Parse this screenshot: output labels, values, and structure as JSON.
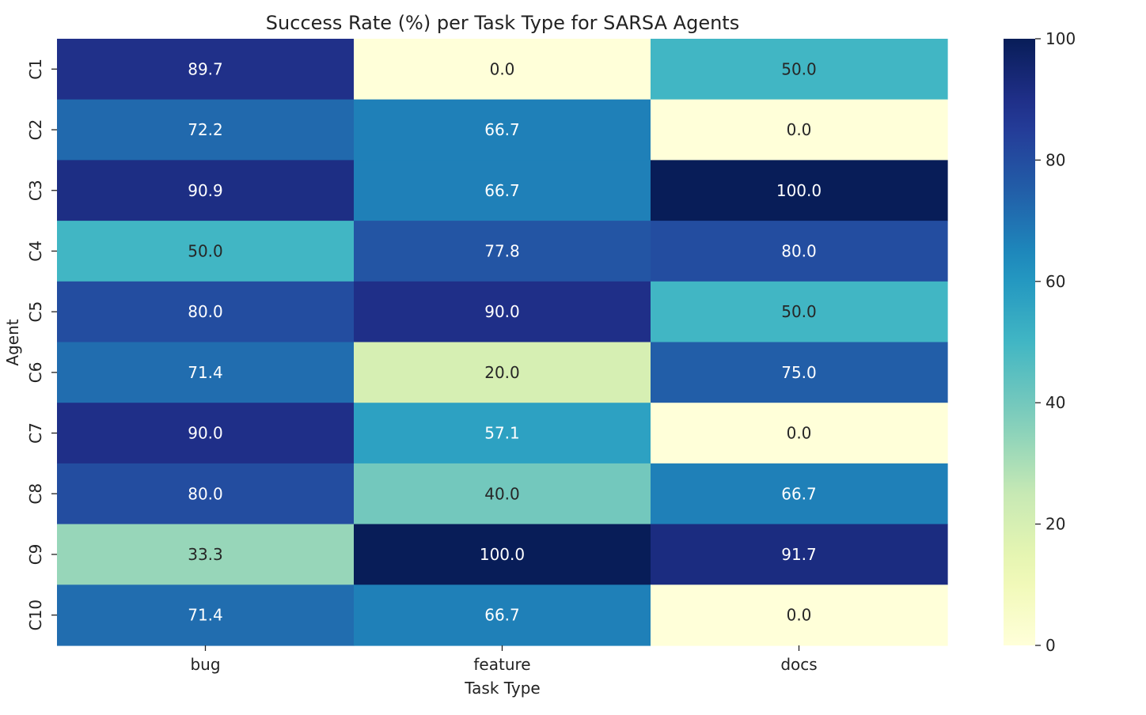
{
  "chart_data": {
    "type": "heatmap",
    "title": "Success Rate (%) per Task Type for SARSA Agents",
    "xlabel": "Task Type",
    "ylabel": "Agent",
    "x": [
      "bug",
      "feature",
      "docs"
    ],
    "y": [
      "C1",
      "C2",
      "C3",
      "C4",
      "C5",
      "C6",
      "C7",
      "C8",
      "C9",
      "C10"
    ],
    "values": [
      [
        89.7,
        0.0,
        50.0
      ],
      [
        72.2,
        66.7,
        0.0
      ],
      [
        90.9,
        66.7,
        100.0
      ],
      [
        50.0,
        77.8,
        80.0
      ],
      [
        80.0,
        90.0,
        50.0
      ],
      [
        71.4,
        20.0,
        75.0
      ],
      [
        90.0,
        57.1,
        0.0
      ],
      [
        80.0,
        40.0,
        66.7
      ],
      [
        33.3,
        100.0,
        91.7
      ],
      [
        71.4,
        66.7,
        0.0
      ]
    ],
    "value_format": "0.1",
    "colormap": "YlGnBu",
    "colorbar": {
      "min": 0,
      "max": 100,
      "ticks": [
        0,
        20,
        40,
        60,
        80,
        100
      ]
    },
    "legend": "colorbar-right",
    "grid": false
  }
}
